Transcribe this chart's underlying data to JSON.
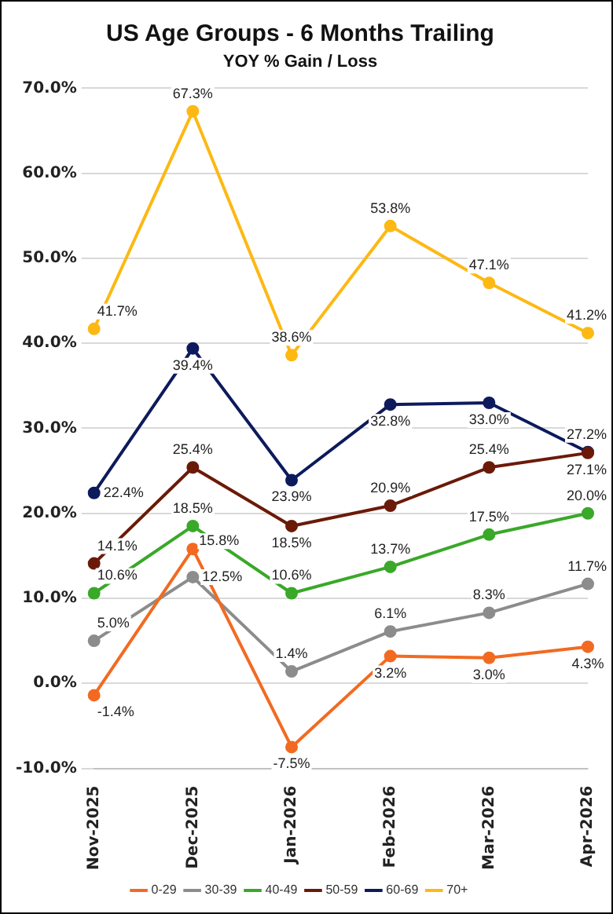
{
  "chart_data": {
    "type": "line",
    "title": "US Age Groups - 6 Months Trailing",
    "subtitle": "YOY % Gain / Loss",
    "categories": [
      "Nov-2025",
      "Dec-2025",
      "Jan-2026",
      "Feb-2026",
      "Mar-2026",
      "Apr-2026"
    ],
    "series": [
      {
        "name": "0-29",
        "color": "#f26a21",
        "values": [
          -1.4,
          15.8,
          -7.5,
          3.2,
          3.0,
          4.3
        ],
        "value_labels": [
          "-1.4%",
          "15.8%",
          "-7.5%",
          "3.2%",
          "3.0%",
          "4.3%"
        ]
      },
      {
        "name": "30-39",
        "color": "#8c8c8c",
        "values": [
          5.0,
          12.5,
          1.4,
          6.1,
          8.3,
          11.7
        ],
        "value_labels": [
          "5.0%",
          "12.5%",
          "1.4%",
          "6.1%",
          "8.3%",
          "11.7%"
        ]
      },
      {
        "name": "40-49",
        "color": "#3aa829",
        "values": [
          10.6,
          18.5,
          10.6,
          13.7,
          17.5,
          20.0
        ],
        "value_labels": [
          "10.6%",
          "18.5%",
          "10.6%",
          "13.7%",
          "17.5%",
          "20.0%"
        ]
      },
      {
        "name": "50-59",
        "color": "#6b1a08",
        "values": [
          14.1,
          25.4,
          18.5,
          20.9,
          25.4,
          27.1
        ],
        "value_labels": [
          "14.1%",
          "25.4%",
          "18.5%",
          "20.9%",
          "25.4%",
          "27.1%"
        ]
      },
      {
        "name": "60-69",
        "color": "#0d1a5c",
        "values": [
          22.4,
          39.4,
          23.9,
          32.8,
          33.0,
          27.2
        ],
        "value_labels": [
          "22.4%",
          "39.4%",
          "23.9%",
          "32.8%",
          "33.0%",
          "27.2%"
        ]
      },
      {
        "name": "70+",
        "color": "#fdb813",
        "values": [
          41.7,
          67.3,
          38.6,
          53.8,
          47.1,
          41.2
        ],
        "value_labels": [
          "41.7%",
          "67.3%",
          "38.6%",
          "53.8%",
          "47.1%",
          "41.2%"
        ]
      }
    ],
    "ylim": [
      -10,
      70
    ],
    "yticks": [
      {
        "value": -10,
        "label": "-10.0%"
      },
      {
        "value": 0,
        "label": "0.0%"
      },
      {
        "value": 10,
        "label": "10.0%"
      },
      {
        "value": 20,
        "label": "20.0%"
      },
      {
        "value": 30,
        "label": "30.0%"
      },
      {
        "value": 40,
        "label": "40.0%"
      },
      {
        "value": 50,
        "label": "50.0%"
      },
      {
        "value": 60,
        "label": "60.0%"
      },
      {
        "value": 70,
        "label": "70.0%"
      }
    ],
    "grid": "y",
    "legend": "bottom",
    "marker": "circle",
    "line_style": "solid"
  }
}
